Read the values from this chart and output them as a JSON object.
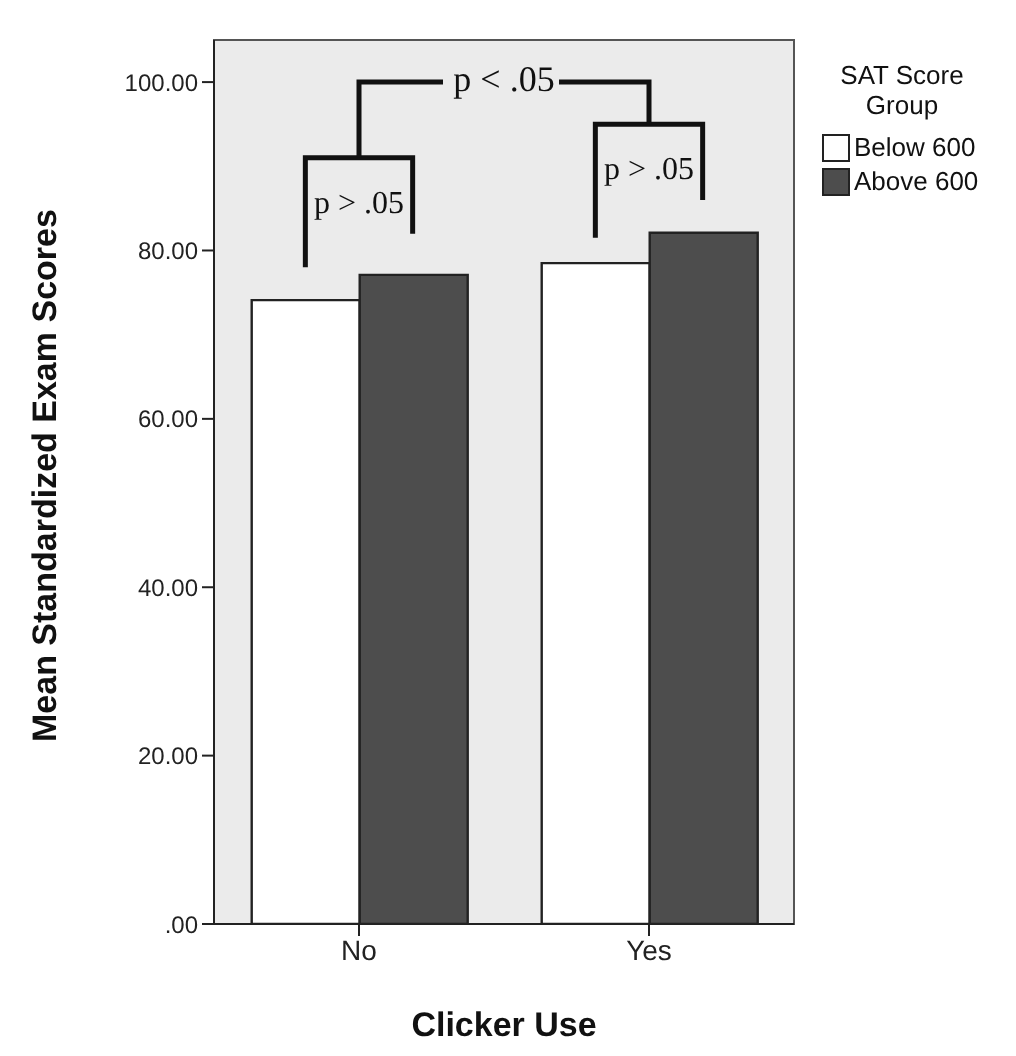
{
  "chart_data": {
    "type": "bar",
    "xlabel": "Clicker Use",
    "ylabel": "Mean Standardized Exam Scores",
    "legend_title": "SAT Score Group",
    "categories": [
      "No",
      "Yes"
    ],
    "series": [
      {
        "name": "Below 600",
        "color": "#ffffff",
        "values": [
          74.1,
          78.5
        ]
      },
      {
        "name": "Above 600",
        "color": "#4d4d4d",
        "values": [
          77.1,
          82.1
        ]
      }
    ],
    "ylim": [
      0,
      105
    ],
    "yticks": [
      {
        "value": 0,
        "label": ".00"
      },
      {
        "value": 20,
        "label": "20.00"
      },
      {
        "value": 40,
        "label": "40.00"
      },
      {
        "value": 60,
        "label": "60.00"
      },
      {
        "value": 80,
        "label": "80.00"
      },
      {
        "value": 100,
        "label": "100.00"
      }
    ],
    "legend": "top right",
    "annotations": [
      "p > .05",
      "p > .05",
      "p < .05"
    ]
  }
}
